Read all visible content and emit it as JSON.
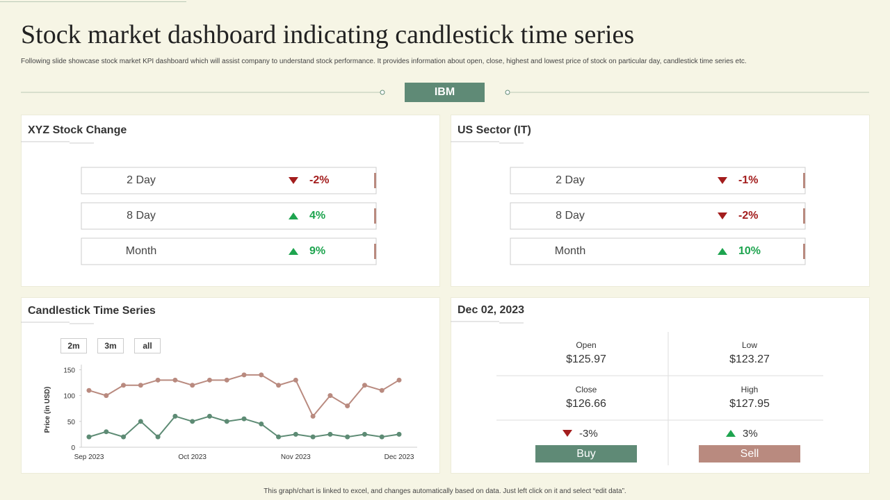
{
  "header": {
    "title": "Stock market dashboard indicating candlestick time series",
    "subtitle": "Following slide showcase stock market KPI  dashboard which will assist company to understand stock performance. It provides information about open, close, highest and lowest price of stock on particular day, candlestick time series etc.",
    "tab": "IBM"
  },
  "trend_colors": {
    "up": "#1ea44f",
    "down": "#a31d1d"
  },
  "kpi_panels": [
    {
      "title": "XYZ  Stock Change",
      "rows": [
        {
          "label": "2 Day",
          "change": "-2%",
          "direction": "down"
        },
        {
          "label": "8 Day",
          "change": "4%",
          "direction": "up"
        },
        {
          "label": "Month",
          "change": "9%",
          "direction": "up"
        }
      ]
    },
    {
      "title": "US Sector (IT)",
      "rows": [
        {
          "label": "2 Day",
          "change": "-1%",
          "direction": "down"
        },
        {
          "label": "8 Day",
          "change": "-2%",
          "direction": "down"
        },
        {
          "label": "Month",
          "change": "10%",
          "direction": "up"
        }
      ]
    }
  ],
  "chart_data": {
    "type": "line",
    "title": "Candlestick Time Series",
    "buttons": [
      "2m",
      "3m",
      "all"
    ],
    "y_label": "Price (in USD)",
    "categories": [
      "Sep 2023",
      null,
      null,
      null,
      null,
      null,
      "Oct 2023",
      null,
      null,
      null,
      null,
      null,
      "Nov 2023",
      null,
      null,
      null,
      null,
      null,
      "Dec 2023"
    ],
    "series": [
      {
        "color": "#b98a7f",
        "values": [
          110,
          100,
          120,
          120,
          130,
          130,
          120,
          130,
          130,
          140,
          140,
          120,
          130,
          60,
          100,
          80,
          120,
          110,
          130
        ]
      },
      {
        "color": "#5d8b74",
        "values": [
          20,
          30,
          20,
          50,
          20,
          60,
          50,
          60,
          50,
          55,
          45,
          20,
          25,
          20,
          25,
          20,
          25,
          20,
          25
        ]
      }
    ],
    "ylim": [
      0,
      160
    ],
    "yticks": [
      0,
      50,
      100,
      150
    ]
  },
  "price_panel": {
    "title": "Dec 02, 2023",
    "cells": [
      {
        "label": "Open",
        "value": "$125.97"
      },
      {
        "label": "Low",
        "value": "$123.27"
      },
      {
        "label": "Close",
        "value": "$126.66"
      },
      {
        "label": "High",
        "value": "$127.95"
      }
    ],
    "changes": [
      {
        "change": "-3%",
        "direction": "down"
      },
      {
        "change": "3%",
        "direction": "up"
      }
    ],
    "actions": [
      "Buy",
      "Sell"
    ]
  },
  "footer": "This graph/chart is linked to excel, and changes automatically based on data. Just left click on it and select “edit data”."
}
